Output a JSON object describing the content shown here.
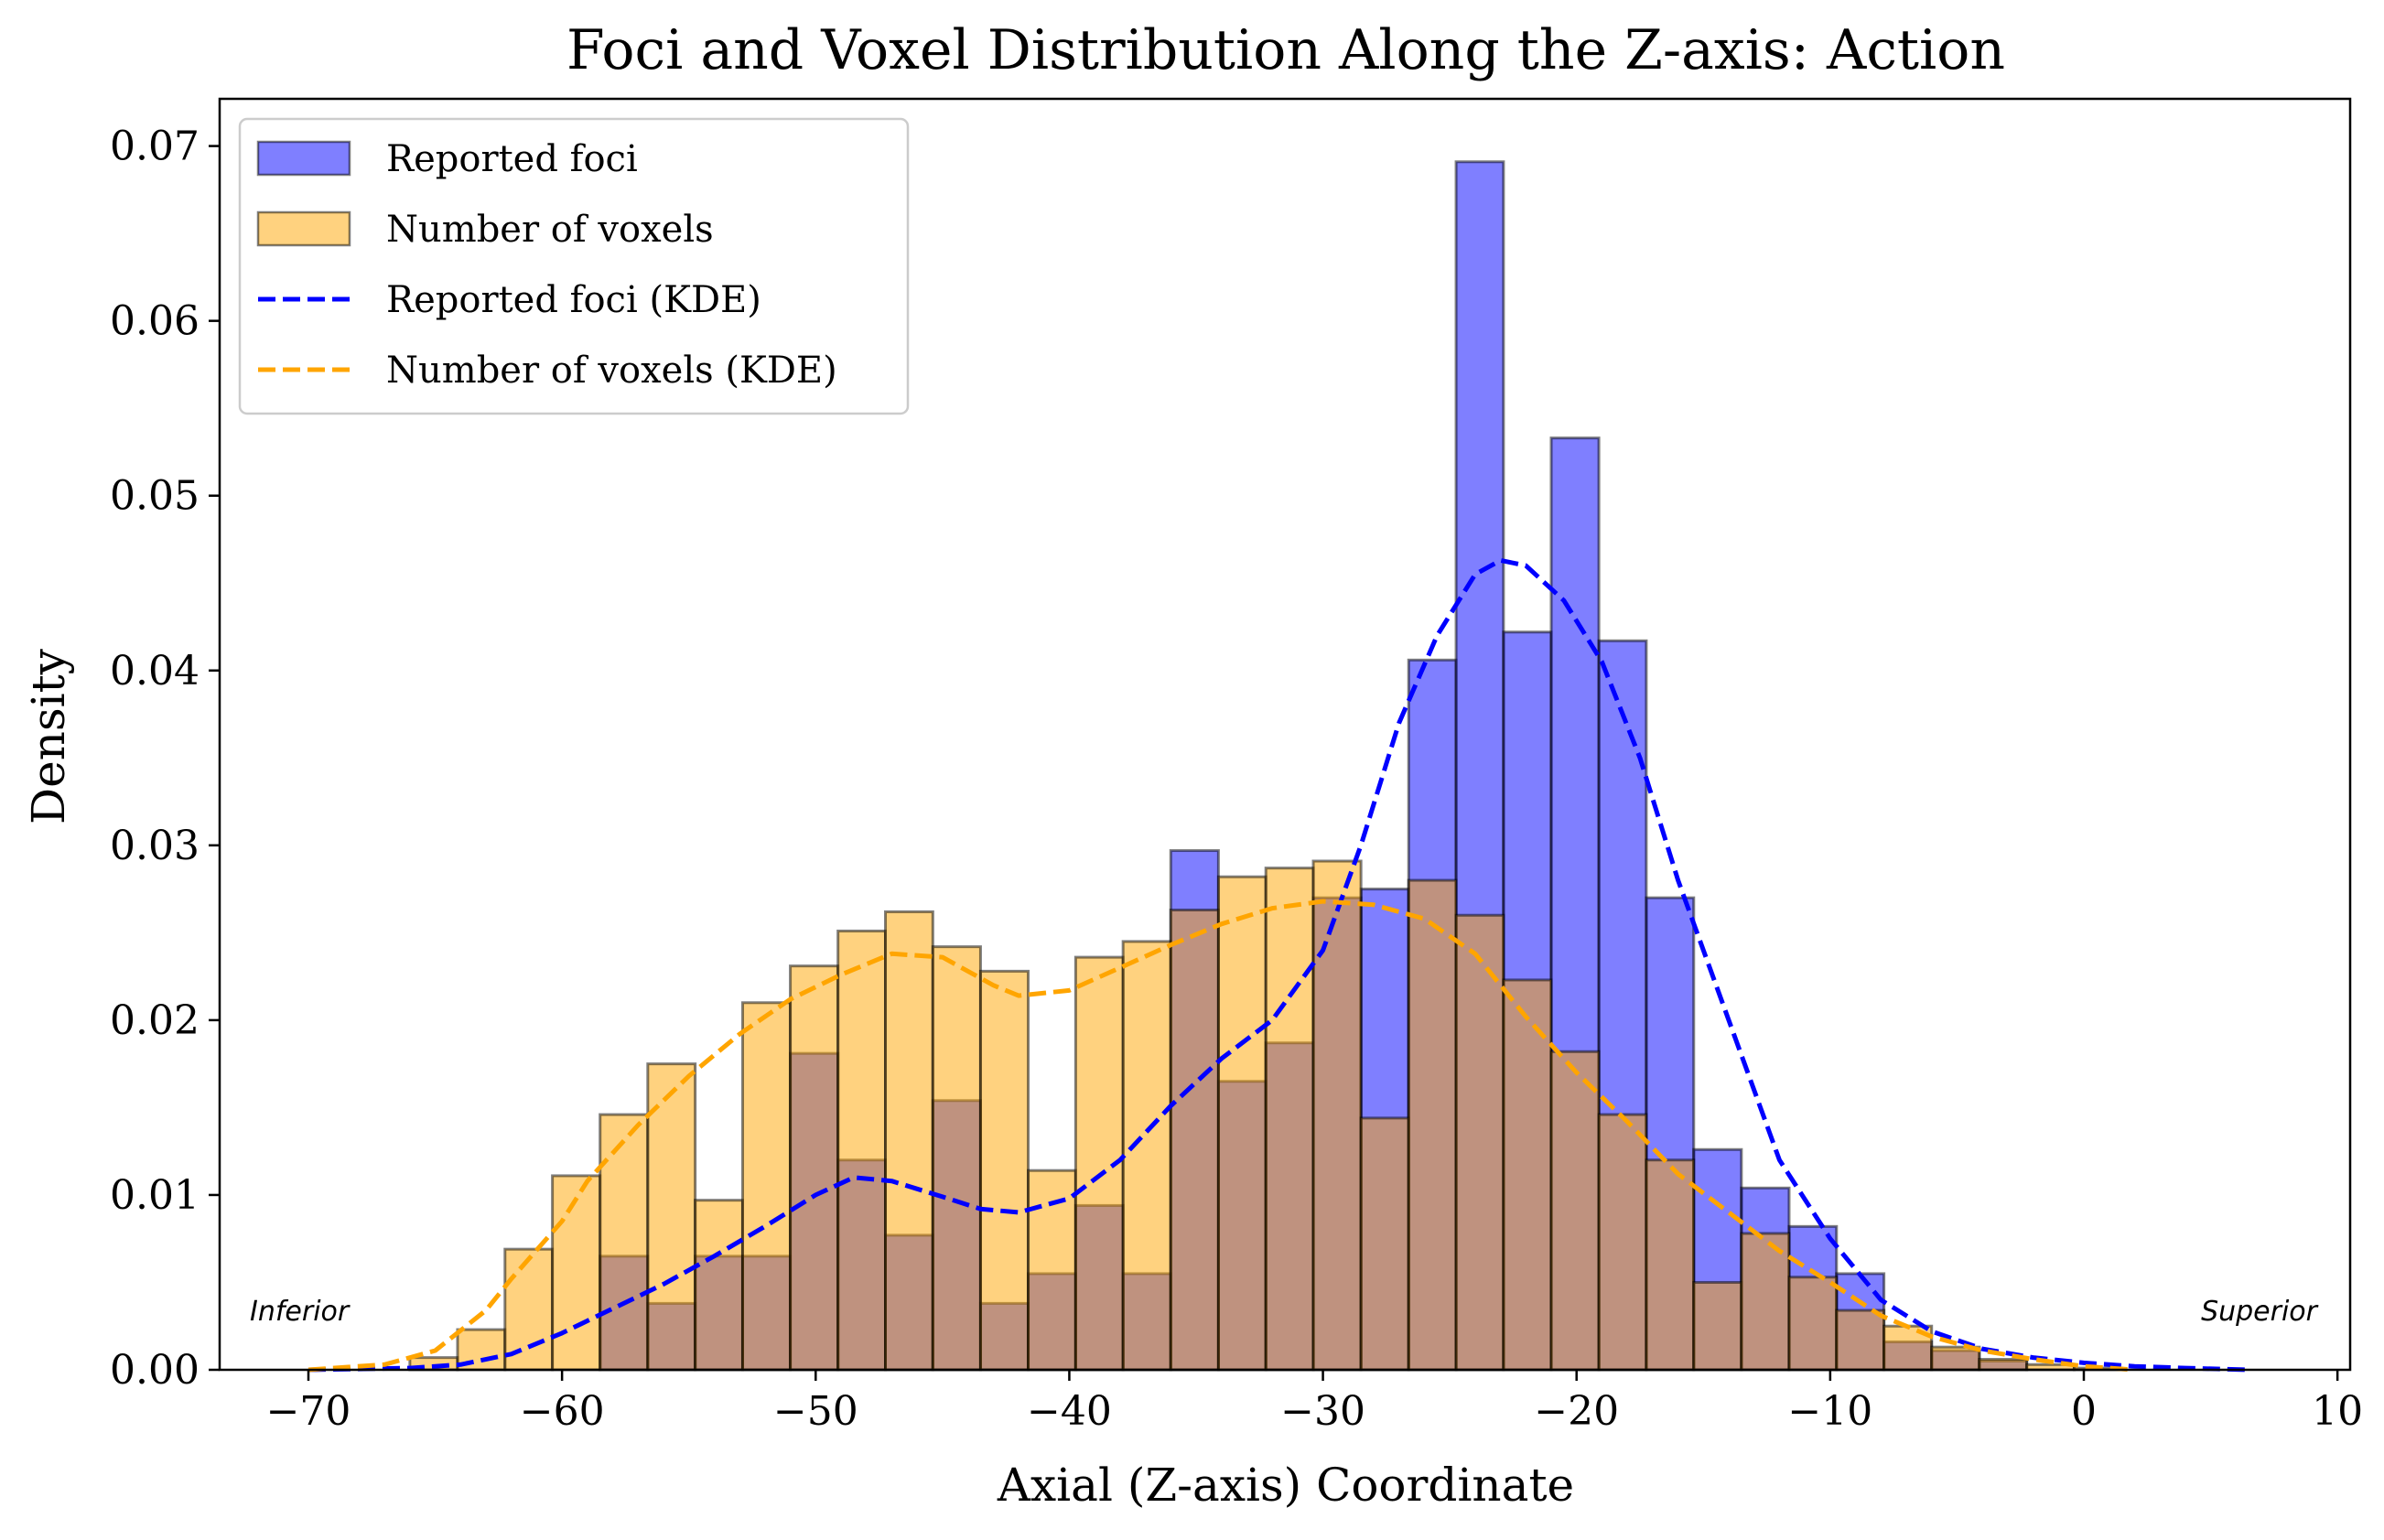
{
  "chart_data": {
    "type": "histogram",
    "title": "Foci and Voxel Distribution Along the Z-axis: Action",
    "xlabel": "Axial (Z-axis) Coordinate",
    "ylabel": "Density",
    "xlim": [
      -73.5,
      10.5
    ],
    "ylim": [
      0,
      0.0727
    ],
    "xticks": [
      -70,
      -60,
      -50,
      -40,
      -30,
      -20,
      -10,
      0,
      10
    ],
    "xtick_labels": [
      "−70",
      "−60",
      "−50",
      "−40",
      "−30",
      "−20",
      "−10",
      "0",
      "10"
    ],
    "yticks": [
      0.0,
      0.01,
      0.02,
      0.03,
      0.04,
      0.05,
      0.06,
      0.07
    ],
    "ytick_labels": [
      "0.00",
      "0.01",
      "0.02",
      "0.03",
      "0.04",
      "0.05",
      "0.06",
      "0.07"
    ],
    "grid": false,
    "legend_position": "top-left",
    "annotations": {
      "left": "Inferior",
      "right": "Superior"
    },
    "bin_edges": [
      -66.0,
      -64.12,
      -62.25,
      -60.38,
      -58.5,
      -56.62,
      -54.75,
      -52.88,
      -51.0,
      -49.12,
      -47.25,
      -45.38,
      -43.5,
      -41.62,
      -39.75,
      -37.88,
      -36.0,
      -34.12,
      -32.25,
      -30.38,
      -28.5,
      -26.62,
      -24.75,
      -22.88,
      -21.0,
      -19.12,
      -17.25,
      -15.38,
      -13.5,
      -11.62,
      -9.75,
      -7.88,
      -6.0,
      -4.12,
      -2.25,
      -0.38,
      1.5
    ],
    "series": [
      {
        "name": "Reported foci",
        "kind": "histogram",
        "color": "#0000ff",
        "opacity": 0.5,
        "values": [
          0.0,
          0.0,
          0.0,
          0.0,
          0.0065,
          0.0038,
          0.0065,
          0.0065,
          0.0181,
          0.012,
          0.0077,
          0.0154,
          0.0038,
          0.0055,
          0.0094,
          0.0055,
          0.0297,
          0.0165,
          0.0187,
          0.027,
          0.0275,
          0.0406,
          0.0691,
          0.0422,
          0.0533,
          0.0417,
          0.027,
          0.0126,
          0.0104,
          0.0082,
          0.0055,
          0.0016,
          0.0011,
          0.0005,
          0.0,
          0.0
        ]
      },
      {
        "name": "Number of voxels",
        "kind": "histogram",
        "color": "#ffa500",
        "opacity": 0.5,
        "values": [
          0.0007,
          0.0023,
          0.0069,
          0.0111,
          0.0146,
          0.0175,
          0.0097,
          0.021,
          0.0231,
          0.0251,
          0.0262,
          0.0242,
          0.0228,
          0.0114,
          0.0236,
          0.0245,
          0.0263,
          0.0282,
          0.0287,
          0.0291,
          0.0144,
          0.028,
          0.026,
          0.0223,
          0.0182,
          0.0146,
          0.012,
          0.005,
          0.0078,
          0.0053,
          0.0034,
          0.0025,
          0.0013,
          0.0006,
          0.0003,
          0.0001
        ]
      },
      {
        "name": "Reported foci (KDE)",
        "kind": "line",
        "style": "dashed",
        "color": "#0000ff",
        "x": [
          -70,
          -66,
          -64,
          -62,
          -60,
          -58,
          -56,
          -54,
          -52,
          -50,
          -48.5,
          -47,
          -45,
          -43.5,
          -42,
          -40,
          -38,
          -36,
          -34,
          -32,
          -30,
          -28.5,
          -27,
          -25.5,
          -24,
          -23,
          -22,
          -20.5,
          -19,
          -17.5,
          -16,
          -14,
          -12,
          -10,
          -8,
          -6,
          -4,
          -2,
          0,
          2,
          4,
          6.5
        ],
        "y": [
          0.0,
          0.0001,
          0.0003,
          0.0009,
          0.0021,
          0.0035,
          0.0049,
          0.0065,
          0.0082,
          0.01,
          0.011,
          0.0108,
          0.0099,
          0.0092,
          0.009,
          0.0098,
          0.012,
          0.0151,
          0.0178,
          0.02,
          0.024,
          0.03,
          0.037,
          0.042,
          0.0455,
          0.0463,
          0.046,
          0.044,
          0.0405,
          0.035,
          0.028,
          0.02,
          0.012,
          0.0075,
          0.004,
          0.0022,
          0.0012,
          0.0007,
          0.0004,
          0.0002,
          0.0001,
          0.0
        ]
      },
      {
        "name": "Number of voxels (KDE)",
        "kind": "line",
        "style": "dashed",
        "color": "#ffa500",
        "x": [
          -70,
          -67,
          -65,
          -63,
          -62,
          -60,
          -59,
          -57,
          -55,
          -53,
          -51,
          -49,
          -47,
          -45,
          -43,
          -42,
          -40,
          -38,
          -36,
          -34,
          -32,
          -30,
          -28,
          -26,
          -24,
          -22,
          -20,
          -18,
          -16,
          -14,
          -12,
          -10,
          -8,
          -6,
          -4,
          -2,
          0,
          2
        ],
        "y": [
          0.0,
          0.0003,
          0.0011,
          0.0034,
          0.0052,
          0.0085,
          0.0108,
          0.014,
          0.0168,
          0.0192,
          0.0212,
          0.0226,
          0.0238,
          0.0236,
          0.022,
          0.0214,
          0.0217,
          0.023,
          0.0243,
          0.0255,
          0.0264,
          0.0268,
          0.0266,
          0.0258,
          0.0238,
          0.0202,
          0.017,
          0.0142,
          0.0112,
          0.009,
          0.0068,
          0.005,
          0.0031,
          0.0019,
          0.0011,
          0.0006,
          0.0002,
          0.0
        ]
      }
    ]
  }
}
